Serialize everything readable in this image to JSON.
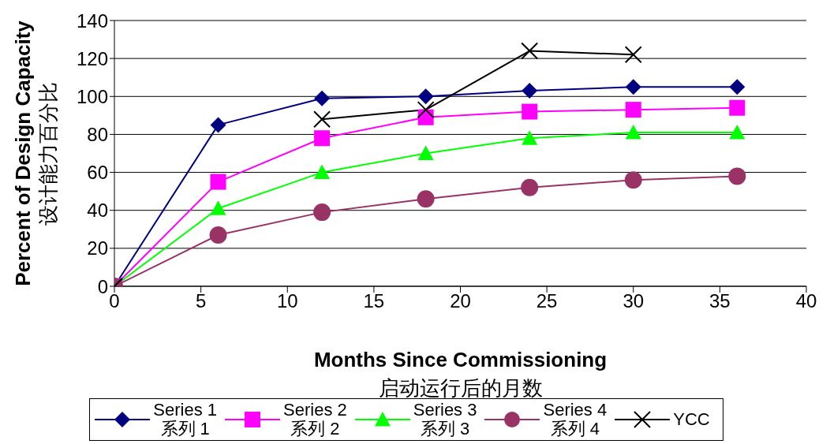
{
  "chart_data": {
    "type": "line",
    "xlabel": "Months Since Commissioning\n启动运行后的月数",
    "ylabel": "Percent of Design Capacity\n设计能力百分比",
    "x": [
      0,
      6,
      12,
      18,
      24,
      30,
      36
    ],
    "series": [
      {
        "name": "Series 1\n系列 1",
        "color": "#000080",
        "marker": "diamond",
        "values": [
          0,
          85,
          99,
          100,
          103,
          105,
          105
        ]
      },
      {
        "name": "Series 2\n系列 2",
        "color": "#ff00ff",
        "marker": "square",
        "values": [
          0,
          55,
          78,
          89,
          92,
          93,
          94
        ]
      },
      {
        "name": "Series 3\n系列 3",
        "color": "#00ff00",
        "marker": "triangle",
        "values": [
          0,
          41,
          60,
          70,
          78,
          81,
          81
        ]
      },
      {
        "name": "Series 4\n系列 4",
        "color": "#993366",
        "marker": "circle",
        "values": [
          0,
          27,
          39,
          46,
          52,
          56,
          58
        ]
      },
      {
        "name": "YCC",
        "color": "#000000",
        "marker": "cross",
        "values": [
          0,
          null,
          88,
          93,
          124,
          122,
          null
        ]
      }
    ],
    "xlim": [
      0,
      40
    ],
    "xticks": [
      0,
      5,
      10,
      15,
      20,
      25,
      30,
      35,
      40
    ],
    "ylim": [
      0,
      140
    ],
    "yticks": [
      0,
      20,
      40,
      60,
      80,
      100,
      120,
      140
    ],
    "grid": "y",
    "legend": "bottom",
    "line_style": "solid"
  }
}
